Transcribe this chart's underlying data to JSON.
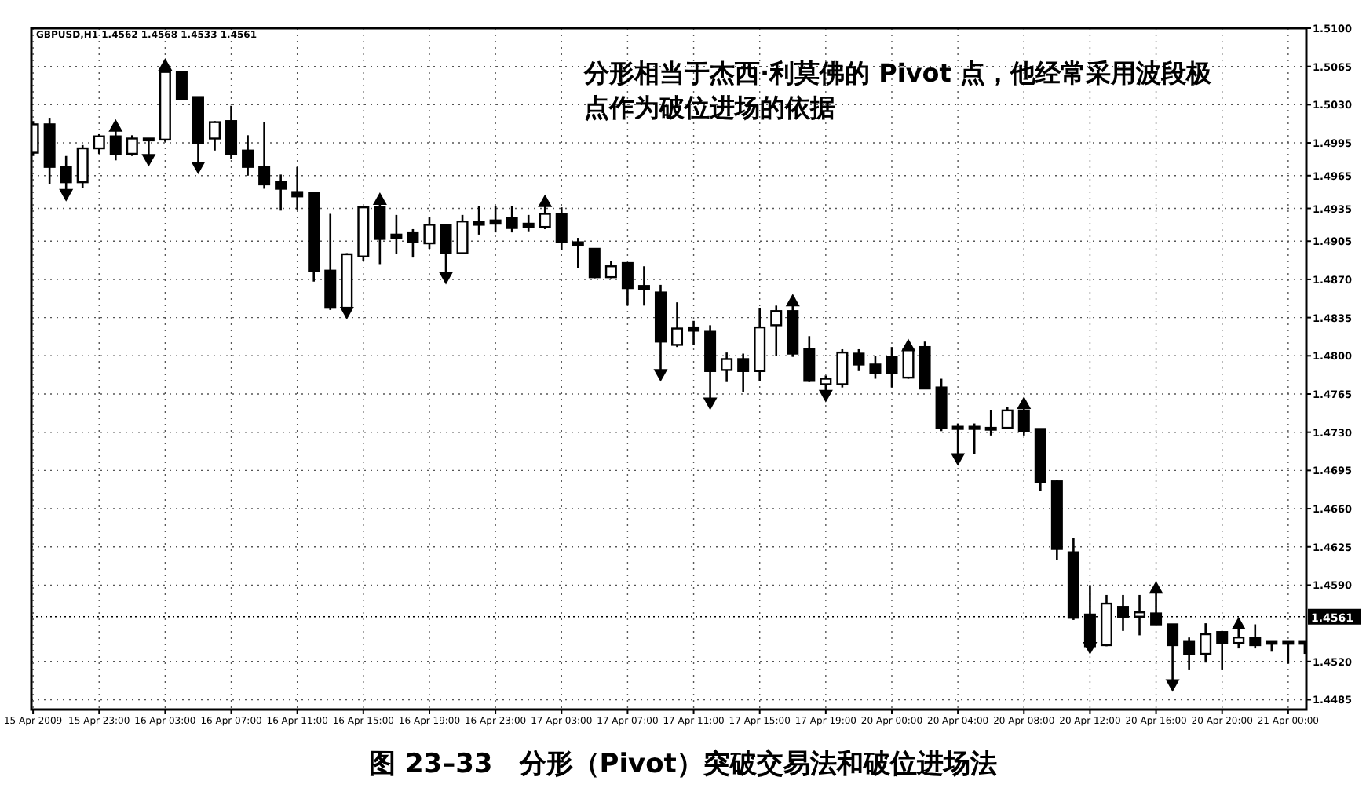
{
  "chart_data": {
    "type": "candlestick",
    "title": "图 23–33　分形（Pivot）突破交易法和破位进场法",
    "annotations": [
      "GBPUSD,H1 1.4562 1.4568 1.4533 1.4561",
      "分形相当于杰西·利莫佛的 Pivot 点，他经常采用波段极点作为破位进场的依据"
    ],
    "categories": [
      "15 Apr 2009",
      null,
      null,
      null,
      "15 Apr 23:00",
      null,
      null,
      null,
      "16 Apr 03:00",
      null,
      null,
      null,
      "16 Apr 07:00",
      null,
      null,
      null,
      "16 Apr 11:00",
      null,
      null,
      null,
      "16 Apr 15:00",
      null,
      null,
      null,
      "16 Apr 19:00",
      null,
      null,
      null,
      "16 Apr 23:00",
      null,
      null,
      null,
      "17 Apr 03:00",
      null,
      null,
      null,
      "17 Apr 07:00",
      null,
      null,
      null,
      "17 Apr 11:00",
      null,
      null,
      null,
      "17 Apr 15:00",
      null,
      null,
      null,
      "17 Apr 19:00",
      null,
      null,
      null,
      "20 Apr 00:00",
      null,
      null,
      null,
      "20 Apr 04:00",
      null,
      null,
      null,
      "20 Apr 08:00",
      null,
      null,
      null,
      "20 Apr 12:00",
      null,
      null,
      null,
      "20 Apr 16:00",
      null,
      null,
      null,
      "20 Apr 20:00",
      null,
      null,
      null,
      "21 Apr 00:00",
      null
    ],
    "ohlc": [
      [
        1.4986,
        1.5015,
        1.4983,
        1.5012
      ],
      [
        1.5012,
        1.5018,
        1.4957,
        1.4973
      ],
      [
        1.4973,
        1.4983,
        1.4947,
        1.4959
      ],
      [
        1.4959,
        1.4993,
        1.4954,
        1.499
      ],
      [
        1.499,
        1.5003,
        1.4985,
        1.5001
      ],
      [
        1.5001,
        1.5011,
        1.4979,
        1.4985
      ],
      [
        1.4985,
        1.5002,
        1.4983,
        1.4999
      ],
      [
        1.4999,
        1.4999,
        1.4979,
        1.4999
      ],
      [
        1.4998,
        1.5067,
        1.4996,
        1.506
      ],
      [
        1.506,
        1.5061,
        1.5034,
        1.5035
      ],
      [
        1.5037,
        1.5037,
        1.4972,
        1.4995
      ],
      [
        1.4999,
        1.5015,
        1.4988,
        1.5014
      ],
      [
        1.5015,
        1.5029,
        1.498,
        1.4985
      ],
      [
        1.4988,
        1.5002,
        1.4965,
        1.4973
      ],
      [
        1.4973,
        1.5014,
        1.4953,
        1.4957
      ],
      [
        1.4959,
        1.4966,
        1.4933,
        1.4953
      ],
      [
        1.495,
        1.4973,
        1.4934,
        1.4946
      ],
      [
        1.4949,
        1.4949,
        1.4868,
        1.4878
      ],
      [
        1.4878,
        1.493,
        1.4842,
        1.4844
      ],
      [
        1.4844,
        1.4894,
        1.4839,
        1.4893
      ],
      [
        1.4891,
        1.4937,
        1.4887,
        1.4936
      ],
      [
        1.4936,
        1.4944,
        1.4884,
        1.4907
      ],
      [
        1.4911,
        1.4929,
        1.4893,
        1.4908
      ],
      [
        1.4913,
        1.4916,
        1.489,
        1.4904
      ],
      [
        1.4903,
        1.4927,
        1.4898,
        1.492
      ],
      [
        1.492,
        1.4921,
        1.4871,
        1.4894
      ],
      [
        1.4894,
        1.4929,
        1.4894,
        1.4923
      ],
      [
        1.4923,
        1.4937,
        1.4911,
        1.492
      ],
      [
        1.4924,
        1.4937,
        1.4913,
        1.4921
      ],
      [
        1.4926,
        1.4937,
        1.4913,
        1.4917
      ],
      [
        1.4921,
        1.4929,
        1.4914,
        1.4918
      ],
      [
        1.4918,
        1.4942,
        1.4916,
        1.493
      ],
      [
        1.493,
        1.4936,
        1.4897,
        1.4904
      ],
      [
        1.4904,
        1.4908,
        1.488,
        1.4901
      ],
      [
        1.4898,
        1.4898,
        1.4871,
        1.4872
      ],
      [
        1.4872,
        1.4887,
        1.4871,
        1.4882
      ],
      [
        1.4885,
        1.4885,
        1.4846,
        1.4862
      ],
      [
        1.4864,
        1.4882,
        1.4846,
        1.4861
      ],
      [
        1.4858,
        1.4865,
        1.4782,
        1.4813
      ],
      [
        1.481,
        1.4849,
        1.4808,
        1.4825
      ],
      [
        1.4826,
        1.4832,
        1.481,
        1.4823
      ],
      [
        1.4822,
        1.4828,
        1.4756,
        1.4786
      ],
      [
        1.4787,
        1.4803,
        1.4776,
        1.4797
      ],
      [
        1.4797,
        1.4802,
        1.4767,
        1.4786
      ],
      [
        1.4786,
        1.4844,
        1.4777,
        1.4826
      ],
      [
        1.4828,
        1.4846,
        1.48,
        1.4841
      ],
      [
        1.4841,
        1.4851,
        1.4799,
        1.4802
      ],
      [
        1.4806,
        1.4818,
        1.4776,
        1.4777
      ],
      [
        1.4774,
        1.4782,
        1.4763,
        1.4779
      ],
      [
        1.4774,
        1.4806,
        1.4771,
        1.4803
      ],
      [
        1.4802,
        1.4806,
        1.4786,
        1.4792
      ],
      [
        1.4792,
        1.48,
        1.4779,
        1.4784
      ],
      [
        1.4799,
        1.4808,
        1.4771,
        1.4784
      ],
      [
        1.478,
        1.481,
        1.4779,
        1.4806
      ],
      [
        1.4808,
        1.4813,
        1.477,
        1.477
      ],
      [
        1.4771,
        1.4779,
        1.4731,
        1.4734
      ],
      [
        1.4735,
        1.4738,
        1.4705,
        1.4733
      ],
      [
        1.4735,
        1.4738,
        1.471,
        1.4733
      ],
      [
        1.4733,
        1.475,
        1.4727,
        1.4734
      ],
      [
        1.4734,
        1.4753,
        1.4734,
        1.475
      ],
      [
        1.475,
        1.4757,
        1.4727,
        1.4731
      ],
      [
        1.4733,
        1.4733,
        1.4676,
        1.4684
      ],
      [
        1.4685,
        1.4686,
        1.4613,
        1.4623
      ],
      [
        1.462,
        1.4633,
        1.4558,
        1.456
      ],
      [
        1.4563,
        1.459,
        1.4532,
        1.4534
      ],
      [
        1.4535,
        1.4581,
        1.4534,
        1.4573
      ],
      [
        1.457,
        1.4581,
        1.4548,
        1.4561
      ],
      [
        1.4561,
        1.4581,
        1.4544,
        1.4565
      ],
      [
        1.4564,
        1.4588,
        1.4554,
        1.4554
      ],
      [
        1.4554,
        1.4554,
        1.4498,
        1.4535
      ],
      [
        1.4538,
        1.4542,
        1.4512,
        1.4527
      ],
      [
        1.4527,
        1.4555,
        1.4519,
        1.4545
      ],
      [
        1.4547,
        1.4548,
        1.4512,
        1.4537
      ],
      [
        1.4537,
        1.4555,
        1.4532,
        1.4542
      ],
      [
        1.4542,
        1.4554,
        1.4532,
        1.4535
      ],
      [
        1.4538,
        1.4538,
        1.4529,
        1.4538
      ],
      [
        1.4538,
        1.4538,
        1.4518,
        1.4538
      ],
      [
        1.4538,
        1.4538,
        1.4527,
        1.4538
      ]
    ],
    "series": [
      {
        "type": "scatter",
        "marker": "triangle",
        "color": "#000000",
        "values": [
          null,
          null,
          null,
          null,
          null,
          1.5011,
          null,
          null,
          1.5067,
          null,
          null,
          null,
          null,
          null,
          null,
          null,
          null,
          null,
          null,
          null,
          null,
          1.4944,
          null,
          null,
          null,
          null,
          null,
          null,
          null,
          null,
          null,
          1.4942,
          null,
          null,
          null,
          null,
          null,
          null,
          null,
          null,
          null,
          null,
          null,
          null,
          null,
          null,
          1.4851,
          null,
          null,
          null,
          null,
          null,
          null,
          1.481,
          null,
          null,
          null,
          null,
          null,
          null,
          1.4757,
          null,
          null,
          null,
          null,
          null,
          null,
          null,
          1.4588,
          null,
          null,
          null,
          null,
          1.4555,
          null,
          null,
          null,
          null
        ]
      },
      {
        "type": "scatter",
        "marker": "triangle",
        "color": "#000000",
        "values": [
          null,
          null,
          1.4947,
          null,
          null,
          null,
          null,
          1.4979,
          null,
          null,
          1.4972,
          null,
          null,
          null,
          null,
          null,
          null,
          null,
          null,
          1.4839,
          null,
          null,
          null,
          null,
          null,
          1.4871,
          null,
          null,
          null,
          null,
          null,
          null,
          null,
          null,
          null,
          null,
          null,
          null,
          1.4782,
          null,
          null,
          1.4756,
          null,
          null,
          null,
          null,
          null,
          null,
          1.4763,
          null,
          null,
          null,
          null,
          null,
          null,
          null,
          1.4705,
          null,
          null,
          null,
          null,
          null,
          null,
          null,
          1.4532,
          null,
          null,
          null,
          null,
          1.4498,
          null,
          null,
          null,
          null,
          null,
          null,
          null,
          null
        ]
      }
    ],
    "ylim": [
      1.4476,
      1.51
    ],
    "yticks": [
      {
        "value": 1.51,
        "label": "1.5100"
      },
      1.5065,
      {
        "value": 1.503,
        "label": "1.5030"
      },
      1.4995,
      1.4965,
      1.4935,
      1.4905,
      {
        "value": 1.487,
        "label": "1.4870"
      },
      1.4835,
      {
        "value": 1.48,
        "label": "1.4800"
      },
      1.4765,
      {
        "value": 1.473,
        "label": "1.4730"
      },
      1.4695,
      {
        "value": 1.466,
        "label": "1.4660"
      },
      1.4625,
      {
        "value": 1.459,
        "label": "1.4590"
      },
      {
        "value": 1.452,
        "label": "1.4520"
      },
      1.4485
    ],
    "grid": true,
    "ref_lines": [
      {
        "axis": "y",
        "value": 1.4561,
        "label": "1.4561",
        "line_style": "dotted"
      }
    ]
  }
}
